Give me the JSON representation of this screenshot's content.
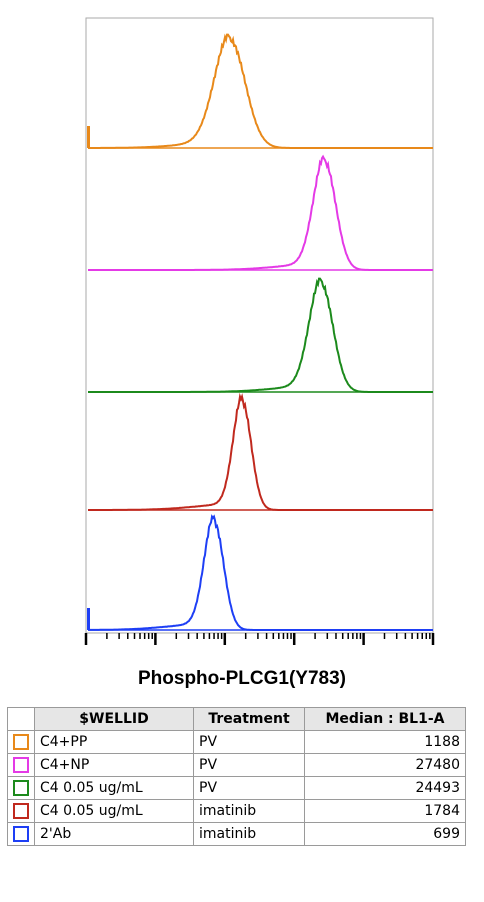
{
  "chart_data": {
    "type": "histogram-overlay",
    "xlabel": "Phospho-PLCG1(Y783)",
    "x_scale": "log",
    "xlim": [
      10,
      1000000
    ],
    "series": [
      {
        "color": "#e8891a",
        "peak": 1188,
        "spread": 0.22,
        "wellid": "C4+PP",
        "treatment": "PV",
        "median": "1188",
        "edge_spike": true
      },
      {
        "color": "#e43ae6",
        "peak": 27480,
        "spread": 0.16,
        "wellid": "C4+NP",
        "treatment": "PV",
        "median": "27480",
        "edge_spike": false
      },
      {
        "color": "#1c8a1c",
        "peak": 24493,
        "spread": 0.17,
        "wellid": "C4 0.05 ug/mL",
        "treatment": "PV",
        "median": "24493",
        "edge_spike": false
      },
      {
        "color": "#c0291e",
        "peak": 1784,
        "spread": 0.13,
        "wellid": "C4 0.05 ug/mL",
        "treatment": "imatinib",
        "median": "1784",
        "edge_spike": false
      },
      {
        "color": "#1e3ff5",
        "peak": 699,
        "spread": 0.14,
        "wellid": "2'Ab",
        "treatment": "imatinib",
        "median": "699",
        "edge_spike": true
      }
    ]
  },
  "legend": {
    "headers": [
      "$WELLID",
      "Treatment",
      "Median : BL1-A"
    ]
  }
}
